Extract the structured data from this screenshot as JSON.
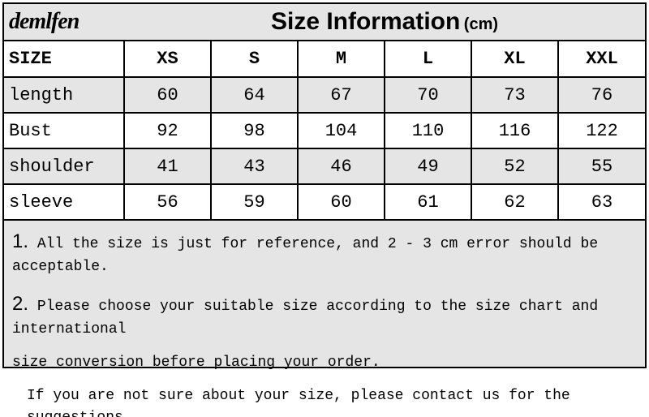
{
  "brand": "demlfen",
  "title_main": "Size Information",
  "title_unit": "(cm)",
  "colors": {
    "background": "#ffffff",
    "shaded": "#e5e5e5",
    "border": "#000000",
    "text": "#000000"
  },
  "table": {
    "size_header": "SIZE",
    "columns": [
      "XS",
      "S",
      "M",
      "L",
      "XL",
      "XXL"
    ],
    "rows": [
      {
        "label": "length",
        "values": [
          "60",
          "64",
          "67",
          "70",
          "73",
          "76"
        ],
        "shaded": true
      },
      {
        "label": "Bust",
        "values": [
          "92",
          "98",
          "104",
          "110",
          "116",
          "122"
        ],
        "shaded": false
      },
      {
        "label": "shoulder",
        "values": [
          "41",
          "43",
          "46",
          "49",
          "52",
          "55"
        ],
        "shaded": true
      },
      {
        "label": "sleeve",
        "values": [
          "56",
          "59",
          "60",
          "61",
          "62",
          "63"
        ],
        "shaded": false
      }
    ]
  },
  "notes": {
    "n1_num": "1.",
    "n1_text": " All the size is just for reference, and 2 - 3 cm error should be acceptable.",
    "n2_num": "2.",
    "n2_text_a": " Please choose your suitable size according to the size chart and international",
    "n2_text_b": "size conversion before placing your order.",
    "n3_text": "If you are not sure about your size, please contact us for the suggestions"
  },
  "fonts": {
    "title_size": 30,
    "unit_size": 20,
    "cell_size": 22,
    "note_size": 18,
    "note_num_size": 24
  }
}
